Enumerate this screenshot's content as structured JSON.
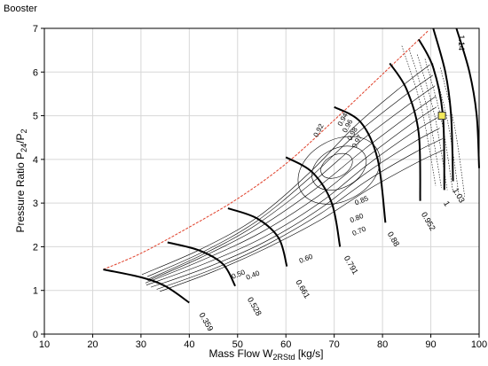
{
  "chart_data": {
    "type": "line",
    "title": "Booster",
    "xlabel": {
      "main": "Mass Flow W",
      "sub": "2RStd",
      "unit": " [kg/s]"
    },
    "ylabel": {
      "main": "Pressure Ratio P",
      "sub1": "24",
      "mid": "/P",
      "sub2": "2"
    },
    "xlim": [
      10,
      100
    ],
    "ylim": [
      0,
      7
    ],
    "xticks": [
      "10",
      "20",
      "30",
      "40",
      "50",
      "60",
      "70",
      "80",
      "90",
      "100"
    ],
    "yticks": [
      "0",
      "1",
      "2",
      "3",
      "4",
      "5",
      "6",
      "7"
    ],
    "grid": true,
    "colors": {
      "surge": "#e0402a",
      "speed": "#000000",
      "efficiency": "#000000",
      "point_fill": "#f2e85a",
      "point_edge": "#333333"
    },
    "surge_line": [
      [
        22.2,
        1.48
      ],
      [
        30,
        1.85
      ],
      [
        40,
        2.45
      ],
      [
        50,
        3.1
      ],
      [
        60,
        3.9
      ],
      [
        70,
        4.9
      ],
      [
        80,
        5.95
      ],
      [
        89.5,
        6.95
      ]
    ],
    "speed_lines": [
      {
        "label": "0.359",
        "points": [
          [
            22.2,
            1.48
          ],
          [
            30,
            1.3
          ],
          [
            35,
            1.1
          ],
          [
            40,
            0.72
          ]
        ],
        "label_at": [
          42,
          0.45
        ]
      },
      {
        "label": "0.528",
        "points": [
          [
            35.5,
            2.1
          ],
          [
            42,
            1.92
          ],
          [
            47,
            1.6
          ],
          [
            49.5,
            1.1
          ]
        ],
        "label_at": [
          52,
          0.8
        ]
      },
      {
        "label": "0.661",
        "points": [
          [
            48,
            2.88
          ],
          [
            54,
            2.65
          ],
          [
            58.5,
            2.2
          ],
          [
            60.2,
            1.55
          ]
        ],
        "label_at": [
          62,
          1.2
        ]
      },
      {
        "label": "0.791",
        "points": [
          [
            60,
            4.05
          ],
          [
            65.5,
            3.7
          ],
          [
            69.5,
            3.0
          ],
          [
            71.2,
            2.0
          ]
        ],
        "label_at": [
          72,
          1.75
        ]
      },
      {
        "label": "0.88",
        "points": [
          [
            70,
            5.2
          ],
          [
            75.5,
            4.85
          ],
          [
            79,
            4.0
          ],
          [
            80.6,
            2.55
          ]
        ],
        "label_at": [
          81,
          2.3
        ]
      },
      {
        "label": "0.952",
        "points": [
          [
            81.5,
            6.2
          ],
          [
            85,
            5.6
          ],
          [
            87.5,
            4.6
          ],
          [
            87.8,
            3.05
          ]
        ],
        "label_at": [
          88,
          2.75
        ]
      },
      {
        "label": "1",
        "points": [
          [
            87.5,
            6.75
          ],
          [
            90.5,
            6.1
          ],
          [
            92.5,
            5.0
          ],
          [
            92.8,
            3.3
          ]
        ],
        "label_at": [
          92.6,
          3.0
        ]
      },
      {
        "label": "1.03",
        "points": [
          [
            90.5,
            7.0
          ],
          [
            93,
            6.0
          ],
          [
            94.2,
            5.0
          ],
          [
            94.6,
            3.5
          ]
        ],
        "label_at": [
          94.5,
          3.3
        ]
      },
      {
        "label": "1.14",
        "points": [
          [
            95.3,
            7.0
          ],
          [
            98,
            6.0
          ],
          [
            99.5,
            5.0
          ],
          [
            100,
            3.8
          ]
        ],
        "label_at": [
          95.8,
          6.85
        ]
      }
    ],
    "efficiency_labels": [
      {
        "label": "0.50",
        "at": [
          49,
          1.26
        ]
      },
      {
        "label": "0.40",
        "at": [
          52,
          1.24
        ]
      },
      {
        "label": "0.60",
        "at": [
          63,
          1.62
        ]
      },
      {
        "label": "0.70",
        "at": [
          74,
          2.25
        ]
      },
      {
        "label": "0.80",
        "at": [
          73.5,
          2.55
        ]
      },
      {
        "label": "0.85",
        "at": [
          74.5,
          2.95
        ]
      },
      {
        "label": "0.92",
        "at": [
          66.5,
          4.5
        ]
      },
      {
        "label": "0.94",
        "at": [
          71.5,
          4.75
        ]
      },
      {
        "label": "0.96",
        "at": [
          72.5,
          4.6
        ]
      },
      {
        "label": "0.98",
        "at": [
          73.5,
          4.42
        ]
      },
      {
        "label": "0.97",
        "at": [
          74.5,
          4.25
        ]
      }
    ],
    "operating_point": [
      92.3,
      5.0
    ]
  }
}
